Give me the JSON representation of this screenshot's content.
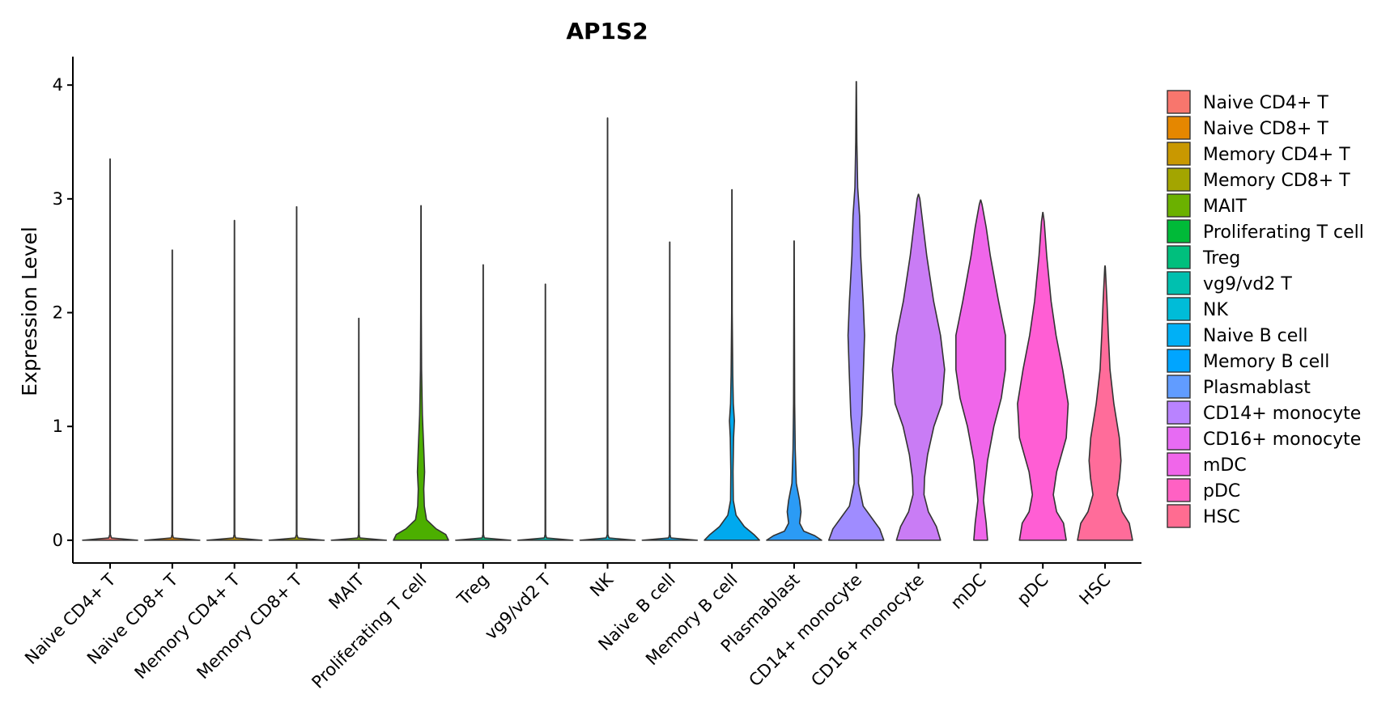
{
  "chart_data": {
    "type": "violin",
    "title": "AP1S2",
    "xlabel": "",
    "ylabel": "Expression Level",
    "ylim": [
      -0.2,
      4.25
    ],
    "yticks": [
      0,
      1,
      2,
      3,
      4
    ],
    "grid": false,
    "legend_position": "right",
    "categories": [
      "Naive CD4+ T",
      "Naive CD8+ T",
      "Memory CD4+ T",
      "Memory CD8+ T",
      "MAIT",
      "Proliferating T cell",
      "Treg",
      "vg9/vd2 T",
      "NK",
      "Naive B cell",
      "Memory B cell",
      "Plasmablast",
      "CD14+ monocyte",
      "CD16+ monocyte",
      "mDC",
      "pDC",
      "HSC"
    ],
    "colors": [
      "#F8766D",
      "#E58700",
      "#C99800",
      "#A3A500",
      "#6BB100",
      "#00BA38",
      "#00BF7D",
      "#00C0AF",
      "#00BCD8",
      "#00B0F6",
      "#00A5FF",
      "#619CFF",
      "#B983FF",
      "#E76BF3",
      "#F066EA",
      "#FF61C3",
      "#FF6C91"
    ],
    "violin_fill_colors": [
      "#F8766D",
      "#E58700",
      "#C99800",
      "#A3A500",
      "#6BB100",
      "#4CAF00",
      "#00BF7D",
      "#00C0AF",
      "#00BCD8",
      "#00B0F6",
      "#00A9EE",
      "#2B9BF5",
      "#9F8CFF",
      "#C97CF5",
      "#F066EA",
      "#FF5ED4",
      "#FF6C9A"
    ],
    "max_values": [
      3.35,
      2.55,
      2.81,
      2.93,
      1.95,
      2.94,
      2.42,
      2.25,
      3.71,
      2.62,
      3.08,
      2.63,
      4.03,
      3.04,
      2.99,
      2.88,
      2.41
    ],
    "density_profiles": [
      [
        [
          0.0,
          1.0
        ],
        [
          0.02,
          0.05
        ],
        [
          0.05,
          0.01
        ]
      ],
      [
        [
          0.0,
          1.0
        ],
        [
          0.02,
          0.04
        ],
        [
          0.05,
          0.01
        ]
      ],
      [
        [
          0.0,
          1.0
        ],
        [
          0.02,
          0.04
        ],
        [
          0.05,
          0.01
        ]
      ],
      [
        [
          0.0,
          1.0
        ],
        [
          0.02,
          0.05
        ],
        [
          0.05,
          0.01
        ]
      ],
      [
        [
          0.0,
          1.0
        ],
        [
          0.02,
          0.04
        ],
        [
          0.05,
          0.01
        ]
      ],
      [
        [
          0.0,
          1.0
        ],
        [
          0.05,
          0.9
        ],
        [
          0.1,
          0.55
        ],
        [
          0.18,
          0.2
        ],
        [
          0.3,
          0.12
        ],
        [
          0.45,
          0.1
        ],
        [
          0.6,
          0.13
        ],
        [
          0.8,
          0.1
        ],
        [
          1.1,
          0.05
        ],
        [
          1.5,
          0.02
        ],
        [
          2.0,
          0.01
        ]
      ],
      [
        [
          0.0,
          1.0
        ],
        [
          0.02,
          0.04
        ],
        [
          0.05,
          0.01
        ]
      ],
      [
        [
          0.0,
          1.0
        ],
        [
          0.02,
          0.04
        ],
        [
          0.05,
          0.01
        ]
      ],
      [
        [
          0.0,
          1.0
        ],
        [
          0.02,
          0.05
        ],
        [
          0.05,
          0.01
        ]
      ],
      [
        [
          0.0,
          1.0
        ],
        [
          0.02,
          0.04
        ],
        [
          0.05,
          0.01
        ]
      ],
      [
        [
          0.0,
          1.0
        ],
        [
          0.05,
          0.8
        ],
        [
          0.12,
          0.45
        ],
        [
          0.22,
          0.15
        ],
        [
          0.35,
          0.05
        ],
        [
          0.6,
          0.04
        ],
        [
          0.9,
          0.06
        ],
        [
          1.05,
          0.09
        ],
        [
          1.2,
          0.05
        ],
        [
          1.45,
          0.03
        ],
        [
          2.0,
          0.01
        ]
      ],
      [
        [
          0.0,
          1.0
        ],
        [
          0.04,
          0.75
        ],
        [
          0.08,
          0.35
        ],
        [
          0.15,
          0.2
        ],
        [
          0.25,
          0.25
        ],
        [
          0.35,
          0.2
        ],
        [
          0.5,
          0.08
        ],
        [
          0.8,
          0.04
        ],
        [
          1.2,
          0.02
        ],
        [
          2.0,
          0.01
        ]
      ],
      [
        [
          0.0,
          1.0
        ],
        [
          0.1,
          0.85
        ],
        [
          0.2,
          0.55
        ],
        [
          0.3,
          0.25
        ],
        [
          0.5,
          0.08
        ],
        [
          0.8,
          0.1
        ],
        [
          1.1,
          0.2
        ],
        [
          1.5,
          0.26
        ],
        [
          1.8,
          0.3
        ],
        [
          2.1,
          0.25
        ],
        [
          2.5,
          0.16
        ],
        [
          2.85,
          0.12
        ],
        [
          3.1,
          0.05
        ],
        [
          3.5,
          0.02
        ]
      ],
      [
        [
          0.0,
          0.8
        ],
        [
          0.12,
          0.65
        ],
        [
          0.25,
          0.36
        ],
        [
          0.4,
          0.2
        ],
        [
          0.55,
          0.22
        ],
        [
          0.75,
          0.33
        ],
        [
          1.0,
          0.56
        ],
        [
          1.2,
          0.85
        ],
        [
          1.5,
          0.95
        ],
        [
          1.8,
          0.8
        ],
        [
          2.1,
          0.55
        ],
        [
          2.5,
          0.3
        ],
        [
          2.9,
          0.1
        ],
        [
          3.0,
          0.05
        ]
      ],
      [
        [
          0.0,
          0.25
        ],
        [
          0.15,
          0.2
        ],
        [
          0.35,
          0.1
        ],
        [
          0.45,
          0.14
        ],
        [
          0.7,
          0.25
        ],
        [
          1.0,
          0.48
        ],
        [
          1.25,
          0.75
        ],
        [
          1.5,
          0.9
        ],
        [
          1.8,
          0.9
        ],
        [
          2.1,
          0.65
        ],
        [
          2.5,
          0.35
        ],
        [
          2.75,
          0.2
        ],
        [
          2.95,
          0.05
        ]
      ],
      [
        [
          0.0,
          0.85
        ],
        [
          0.15,
          0.75
        ],
        [
          0.25,
          0.5
        ],
        [
          0.4,
          0.38
        ],
        [
          0.6,
          0.5
        ],
        [
          0.9,
          0.85
        ],
        [
          1.2,
          0.92
        ],
        [
          1.5,
          0.72
        ],
        [
          1.8,
          0.48
        ],
        [
          2.1,
          0.3
        ],
        [
          2.5,
          0.14
        ],
        [
          2.8,
          0.05
        ]
      ],
      [
        [
          0.0,
          1.0
        ],
        [
          0.15,
          0.88
        ],
        [
          0.25,
          0.62
        ],
        [
          0.4,
          0.44
        ],
        [
          0.55,
          0.53
        ],
        [
          0.7,
          0.58
        ],
        [
          0.9,
          0.52
        ],
        [
          1.2,
          0.32
        ],
        [
          1.5,
          0.18
        ],
        [
          1.8,
          0.12
        ],
        [
          2.1,
          0.07
        ],
        [
          2.4,
          0.01
        ]
      ]
    ]
  }
}
